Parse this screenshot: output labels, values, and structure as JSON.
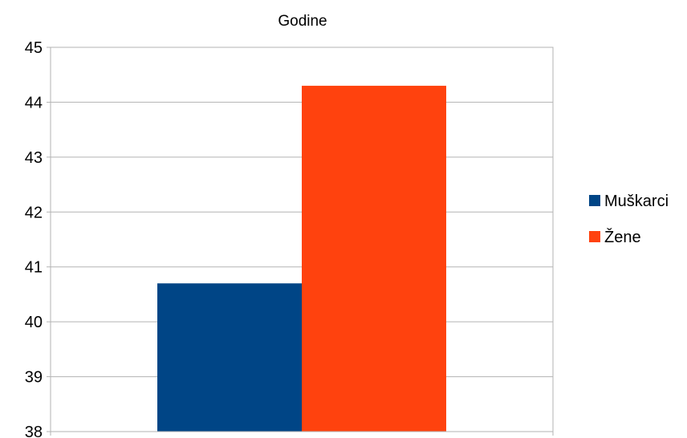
{
  "chart_data": {
    "type": "bar",
    "title": "Godine",
    "categories": [
      ""
    ],
    "series": [
      {
        "name": "Muškarci",
        "values": [
          40.7
        ],
        "color": "#004586"
      },
      {
        "name": "Žene",
        "values": [
          44.3
        ],
        "color": "#FF420E"
      }
    ],
    "xlabel": "",
    "ylabel": "",
    "ylim": [
      38,
      45
    ],
    "yticks": [
      "38",
      "39",
      "40",
      "41",
      "42",
      "43",
      "44",
      "45"
    ],
    "grid": true,
    "legend_position": "right"
  }
}
